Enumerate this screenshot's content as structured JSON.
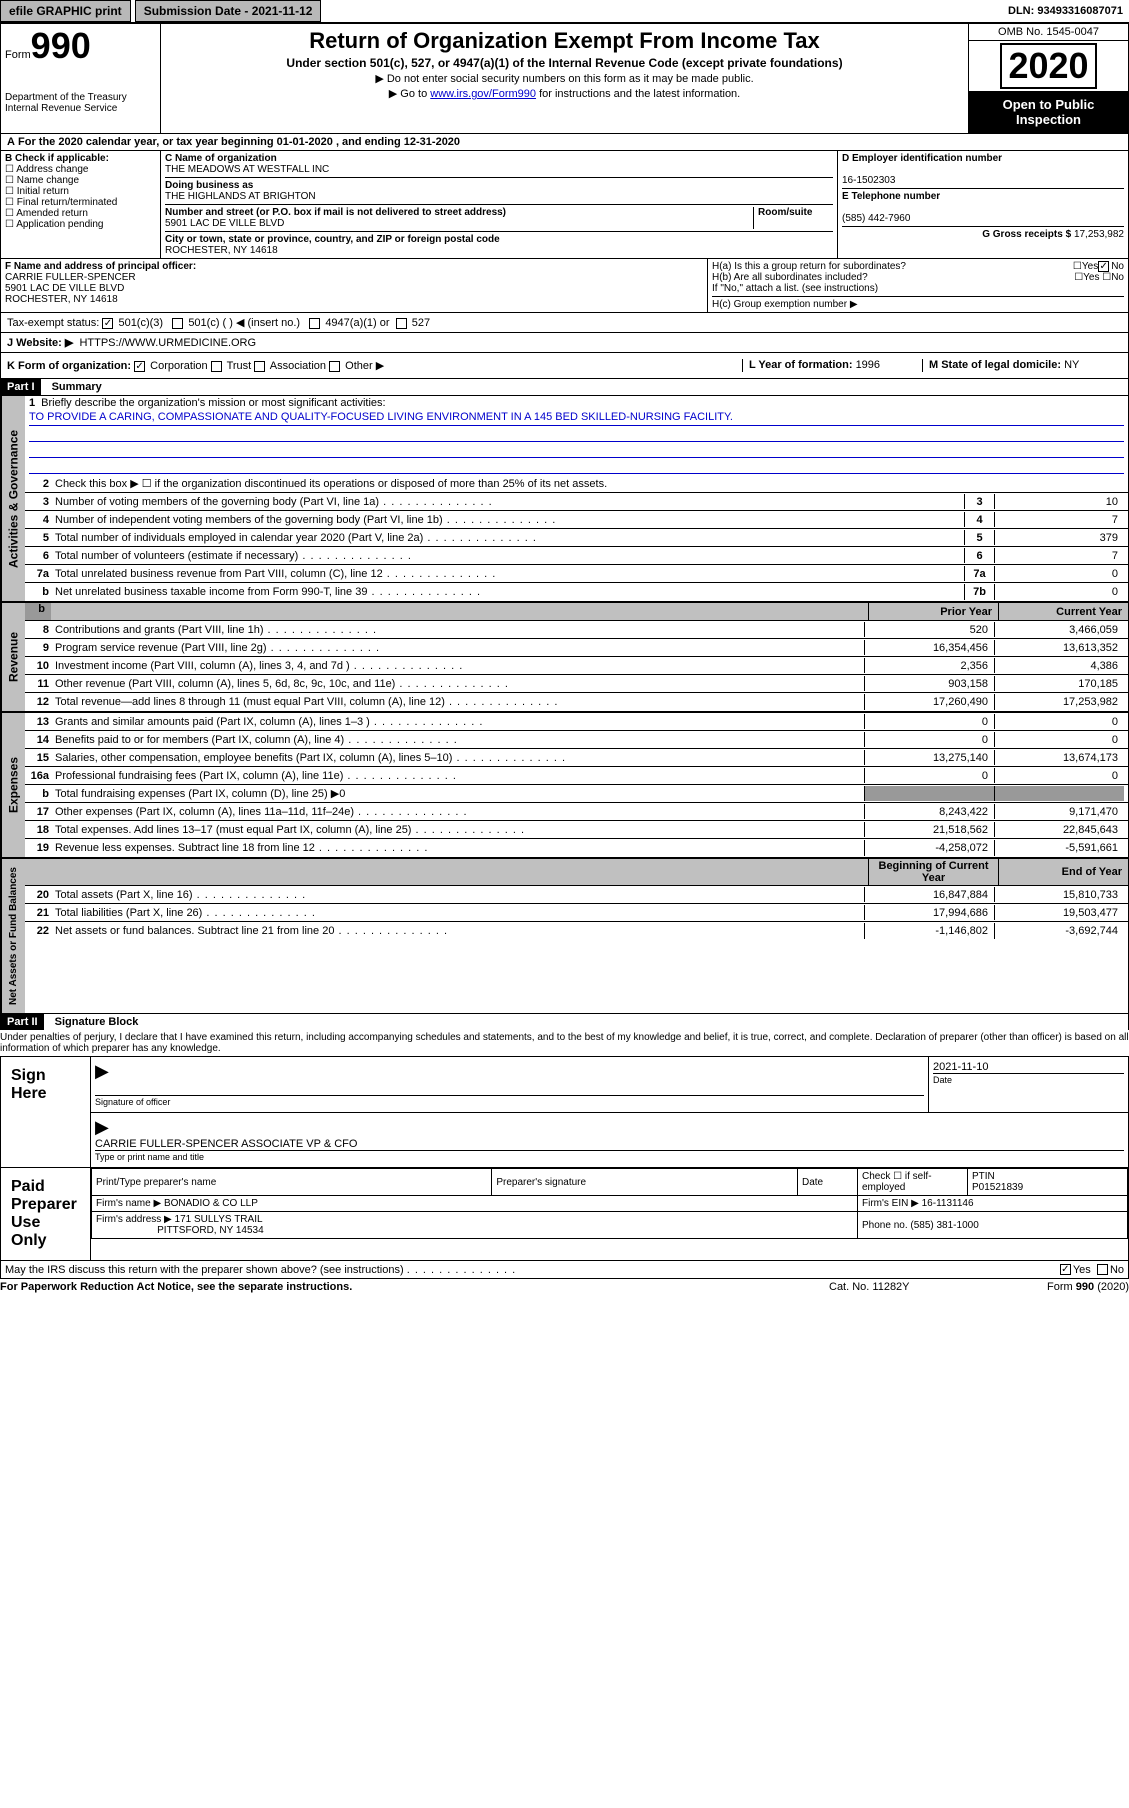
{
  "topbar": {
    "efile": "efile GRAPHIC print",
    "submission_label": "Submission Date - 2021-11-12",
    "dln": "DLN: 93493316087071"
  },
  "header": {
    "form_label": "Form",
    "form_num": "990",
    "title": "Return of Organization Exempt From Income Tax",
    "subtitle": "Under section 501(c), 527, or 4947(a)(1) of the Internal Revenue Code (except private foundations)",
    "note1": "▶ Do not enter social security numbers on this form as it may be made public.",
    "note2_pre": "▶ Go to ",
    "note2_link": "www.irs.gov/Form990",
    "note2_post": " for instructions and the latest information.",
    "dept": "Department of the Treasury\nInternal Revenue Service",
    "omb": "OMB No. 1545-0047",
    "year": "2020",
    "public": "Open to Public Inspection"
  },
  "periodA": "For the 2020 calendar year, or tax year beginning 01-01-2020    , and ending 12-31-2020",
  "boxB": {
    "label": "B Check if applicable:",
    "opts": [
      "Address change",
      "Name change",
      "Initial return",
      "Final return/terminated",
      "Amended return",
      "Application pending"
    ]
  },
  "boxC": {
    "name_label": "C Name of organization",
    "name": "THE MEADOWS AT WESTFALL INC",
    "dba_label": "Doing business as",
    "dba": "THE HIGHLANDS AT BRIGHTON",
    "addr_label": "Number and street (or P.O. box if mail is not delivered to street address)",
    "room_label": "Room/suite",
    "addr": "5901 LAC DE VILLE BLVD",
    "city_label": "City or town, state or province, country, and ZIP or foreign postal code",
    "city": "ROCHESTER, NY  14618"
  },
  "boxD": {
    "label": "D Employer identification number",
    "val": "16-1502303"
  },
  "boxE": {
    "label": "E Telephone number",
    "val": "(585) 442-7960"
  },
  "boxG": {
    "label": "G Gross receipts $ ",
    "val": "17,253,982"
  },
  "boxF": {
    "label": "F Name and address of principal officer:",
    "name": "CARRIE FULLER-SPENCER",
    "addr1": "5901 LAC DE VILLE BLVD",
    "addr2": "ROCHESTER, NY  14618"
  },
  "boxH": {
    "a": "H(a)  Is this a group return for subordinates?",
    "b": "H(b)  Are all subordinates included?",
    "b_note": "If \"No,\" attach a list. (see instructions)",
    "c": "H(c)  Group exemption number ▶"
  },
  "taxExempt": {
    "label": "Tax-exempt status:",
    "opt501c3": "501(c)(3)",
    "opt501c": "501(c) (   ) ◀ (insert no.)",
    "opt4947": "4947(a)(1) or",
    "opt527": "527"
  },
  "boxJ": {
    "label": "J   Website: ▶",
    "val": "HTTPS://WWW.URMEDICINE.ORG"
  },
  "boxK": {
    "label": "K Form of organization:",
    "corp": "Corporation",
    "trust": "Trust",
    "assoc": "Association",
    "other": "Other ▶"
  },
  "boxL": {
    "label": "L Year of formation: ",
    "val": "1996"
  },
  "boxM": {
    "label": "M State of legal domicile: ",
    "val": "NY"
  },
  "part1": {
    "tab": "Part I",
    "title": "Summary",
    "vert1": "Activities & Governance",
    "vert2": "Revenue",
    "vert3": "Expenses",
    "vert4": "Net Assets or Fund Balances",
    "line1": "Briefly describe the organization's mission or most significant activities:",
    "mission": "TO PROVIDE A CARING, COMPASSIONATE AND QUALITY-FOCUSED LIVING ENVIRONMENT IN A 145 BED SKILLED-NURSING FACILITY.",
    "line2": "Check this box ▶ ☐  if the organization discontinued its operations or disposed of more than 25% of its net assets.",
    "lines_gov": [
      {
        "n": "3",
        "t": "Number of voting members of the governing body (Part VI, line 1a)",
        "b": "3",
        "v": "10"
      },
      {
        "n": "4",
        "t": "Number of independent voting members of the governing body (Part VI, line 1b)",
        "b": "4",
        "v": "7"
      },
      {
        "n": "5",
        "t": "Total number of individuals employed in calendar year 2020 (Part V, line 2a)",
        "b": "5",
        "v": "379"
      },
      {
        "n": "6",
        "t": "Total number of volunteers (estimate if necessary)",
        "b": "6",
        "v": "7"
      },
      {
        "n": "7a",
        "t": "Total unrelated business revenue from Part VIII, column (C), line 12",
        "b": "7a",
        "v": "0"
      },
      {
        "n": "  b",
        "t": "Net unrelated business taxable income from Form 990-T, line 39",
        "b": "7b",
        "v": "0"
      }
    ],
    "col_prior": "Prior Year",
    "col_current": "Current Year",
    "col_begin": "Beginning of Current Year",
    "col_end": "End of Year",
    "lines_rev": [
      {
        "n": "8",
        "t": "Contributions and grants (Part VIII, line 1h)",
        "p": "520",
        "c": "3,466,059"
      },
      {
        "n": "9",
        "t": "Program service revenue (Part VIII, line 2g)",
        "p": "16,354,456",
        "c": "13,613,352"
      },
      {
        "n": "10",
        "t": "Investment income (Part VIII, column (A), lines 3, 4, and 7d )",
        "p": "2,356",
        "c": "4,386"
      },
      {
        "n": "11",
        "t": "Other revenue (Part VIII, column (A), lines 5, 6d, 8c, 9c, 10c, and 11e)",
        "p": "903,158",
        "c": "170,185"
      },
      {
        "n": "12",
        "t": "Total revenue—add lines 8 through 11 (must equal Part VIII, column (A), line 12)",
        "p": "17,260,490",
        "c": "17,253,982"
      }
    ],
    "lines_exp": [
      {
        "n": "13",
        "t": "Grants and similar amounts paid (Part IX, column (A), lines 1–3 )",
        "p": "0",
        "c": "0"
      },
      {
        "n": "14",
        "t": "Benefits paid to or for members (Part IX, column (A), line 4)",
        "p": "0",
        "c": "0"
      },
      {
        "n": "15",
        "t": "Salaries, other compensation, employee benefits (Part IX, column (A), lines 5–10)",
        "p": "13,275,140",
        "c": "13,674,173"
      },
      {
        "n": "16a",
        "t": "Professional fundraising fees (Part IX, column (A), line 11e)",
        "p": "0",
        "c": "0"
      },
      {
        "n": "  b",
        "t": "Total fundraising expenses (Part IX, column (D), line 25) ▶0",
        "p": "",
        "c": "",
        "grey": true
      },
      {
        "n": "17",
        "t": "Other expenses (Part IX, column (A), lines 11a–11d, 11f–24e)",
        "p": "8,243,422",
        "c": "9,171,470"
      },
      {
        "n": "18",
        "t": "Total expenses. Add lines 13–17 (must equal Part IX, column (A), line 25)",
        "p": "21,518,562",
        "c": "22,845,643"
      },
      {
        "n": "19",
        "t": "Revenue less expenses. Subtract line 18 from line 12",
        "p": "-4,258,072",
        "c": "-5,591,661"
      }
    ],
    "lines_net": [
      {
        "n": "20",
        "t": "Total assets (Part X, line 16)",
        "p": "16,847,884",
        "c": "15,810,733"
      },
      {
        "n": "21",
        "t": "Total liabilities (Part X, line 26)",
        "p": "17,994,686",
        "c": "19,503,477"
      },
      {
        "n": "22",
        "t": "Net assets or fund balances. Subtract line 21 from line 20",
        "p": "-1,146,802",
        "c": "-3,692,744"
      }
    ]
  },
  "part2": {
    "tab": "Part II",
    "title": "Signature Block",
    "penalty": "Under penalties of perjury, I declare that I have examined this return, including accompanying schedules and statements, and to the best of my knowledge and belief, it is true, correct, and complete. Declaration of preparer (other than officer) is based on all information of which preparer has any knowledge."
  },
  "sign": {
    "here": "Sign Here",
    "sig_label": "Signature of officer",
    "date": "2021-11-10",
    "date_label": "Date",
    "name": "CARRIE FULLER-SPENCER  ASSOCIATE VP & CFO",
    "name_label": "Type or print name and title"
  },
  "paid": {
    "label": "Paid Preparer Use Only",
    "h_name": "Print/Type preparer's name",
    "h_sig": "Preparer's signature",
    "h_date": "Date",
    "h_check": "Check ☐ if self-employed",
    "h_ptin": "PTIN",
    "ptin": "P01521839",
    "firm_label": "Firm's name    ▶",
    "firm": "BONADIO & CO LLP",
    "ein_label": "Firm's EIN ▶",
    "ein": "16-1131146",
    "addr_label": "Firm's address ▶",
    "addr1": "171 SULLYS TRAIL",
    "addr2": "PITTSFORD, NY  14534",
    "phone_label": "Phone no. ",
    "phone": "(585) 381-1000"
  },
  "discuss": "May the IRS discuss this return with the preparer shown above? (see instructions)",
  "yes": "Yes",
  "no": "No",
  "footer": {
    "left": "For Paperwork Reduction Act Notice, see the separate instructions.",
    "mid": "Cat. No. 11282Y",
    "right": "Form 990 (2020)"
  }
}
